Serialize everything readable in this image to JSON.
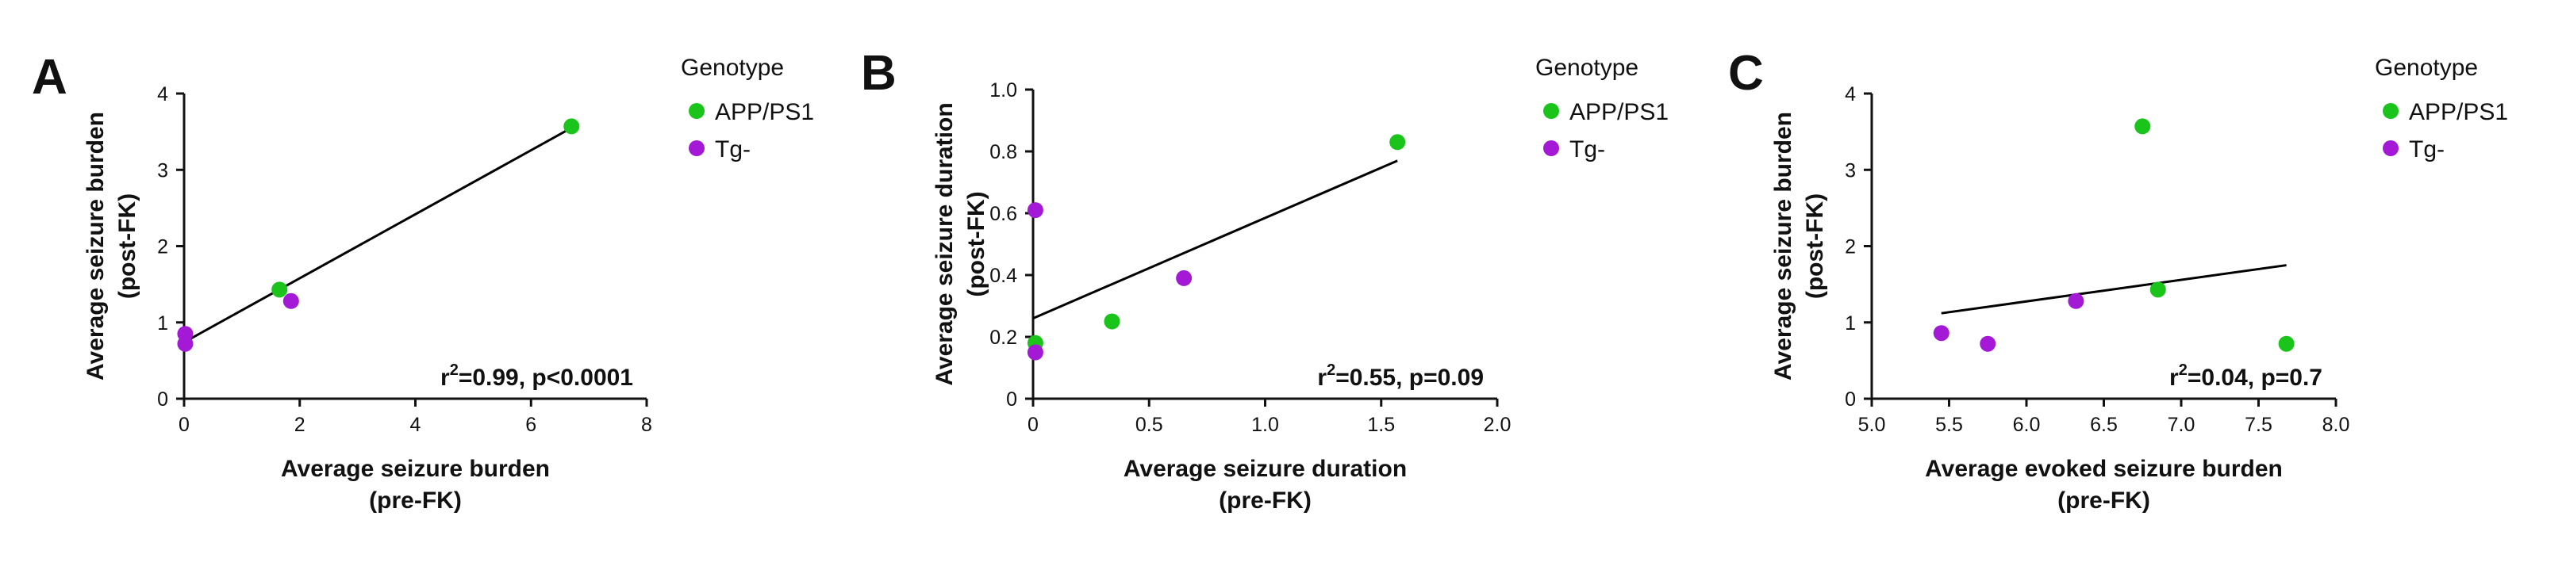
{
  "legend": {
    "title": "Genotype",
    "groups": [
      {
        "name": "APP/PS1",
        "color": "#1bc41b"
      },
      {
        "name": "Tg-",
        "color": "#a319d6"
      }
    ]
  },
  "chart_data": [
    {
      "panel": "A",
      "type": "scatter",
      "xlabel_lines": [
        "Average seizure burden",
        "(pre-FK)"
      ],
      "ylabel_lines": [
        "Average seizure burden",
        "(post-FK)"
      ],
      "xlim": [
        0,
        8
      ],
      "ylim": [
        0,
        4
      ],
      "xticks": [
        0,
        2,
        4,
        6,
        8
      ],
      "xtick_labels": [
        "0",
        "2",
        "4",
        "6",
        "8"
      ],
      "yticks": [
        0,
        1,
        2,
        3,
        4
      ],
      "ytick_labels": [
        "0",
        "1",
        "2",
        "3",
        "4"
      ],
      "series": [
        {
          "name": "APP/PS1",
          "points": [
            [
              1.65,
              1.43
            ],
            [
              6.7,
              3.57
            ]
          ]
        },
        {
          "name": "Tg-",
          "points": [
            [
              0.02,
              0.85
            ],
            [
              0.02,
              0.72
            ],
            [
              1.85,
              1.28
            ]
          ]
        }
      ],
      "fit_line": [
        [
          0,
          0.74
        ],
        [
          6.7,
          3.55
        ]
      ],
      "stat": {
        "prefix": "r",
        "sup": "2",
        "text": "=0.99, p<0.0001"
      }
    },
    {
      "panel": "B",
      "type": "scatter",
      "xlabel_lines": [
        "Average seizure duration",
        "(pre-FK)"
      ],
      "ylabel_lines": [
        "Average seizure duration",
        "(post-FK)"
      ],
      "xlim": [
        0,
        2
      ],
      "ylim": [
        0,
        1
      ],
      "xticks": [
        0,
        0.5,
        1,
        1.5,
        2
      ],
      "xtick_labels": [
        "0",
        "0.5",
        "1.0",
        "1.5",
        "2.0"
      ],
      "yticks": [
        0,
        0.2,
        0.4,
        0.6,
        0.8,
        1
      ],
      "ytick_labels": [
        "0",
        "0.2",
        "0.4",
        "0.6",
        "0.8",
        "1.0"
      ],
      "series": [
        {
          "name": "APP/PS1",
          "points": [
            [
              0.01,
              0.18
            ],
            [
              0.34,
              0.25
            ],
            [
              1.57,
              0.83
            ]
          ]
        },
        {
          "name": "Tg-",
          "points": [
            [
              0.01,
              0.61
            ],
            [
              0.01,
              0.15
            ],
            [
              0.65,
              0.39
            ]
          ]
        }
      ],
      "fit_line": [
        [
          0,
          0.26
        ],
        [
          1.57,
          0.77
        ]
      ],
      "stat": {
        "prefix": "r",
        "sup": "2",
        "text": "=0.55, p=0.09"
      }
    },
    {
      "panel": "C",
      "type": "scatter",
      "xlabel_lines": [
        "Average evoked seizure burden",
        "(pre-FK)"
      ],
      "ylabel_lines": [
        "Average seizure burden",
        "(post-FK)"
      ],
      "xlim": [
        5,
        8
      ],
      "ylim": [
        0,
        4
      ],
      "xticks": [
        5,
        5.5,
        6,
        6.5,
        7,
        7.5,
        8
      ],
      "xtick_labels": [
        "5.0",
        "5.5",
        "6.0",
        "6.5",
        "7.0",
        "7.5",
        "8.0"
      ],
      "yticks": [
        0,
        1,
        2,
        3,
        4
      ],
      "ytick_labels": [
        "0",
        "1",
        "2",
        "3",
        "4"
      ],
      "series": [
        {
          "name": "APP/PS1",
          "points": [
            [
              6.75,
              3.57
            ],
            [
              6.85,
              1.43
            ],
            [
              7.68,
              0.72
            ]
          ]
        },
        {
          "name": "Tg-",
          "points": [
            [
              5.45,
              0.86
            ],
            [
              5.75,
              0.72
            ],
            [
              6.32,
              1.28
            ]
          ]
        }
      ],
      "fit_line": [
        [
          5.45,
          1.12
        ],
        [
          7.68,
          1.75
        ]
      ],
      "stat": {
        "prefix": "r",
        "sup": "2",
        "text": "=0.04, p=0.7"
      }
    }
  ]
}
